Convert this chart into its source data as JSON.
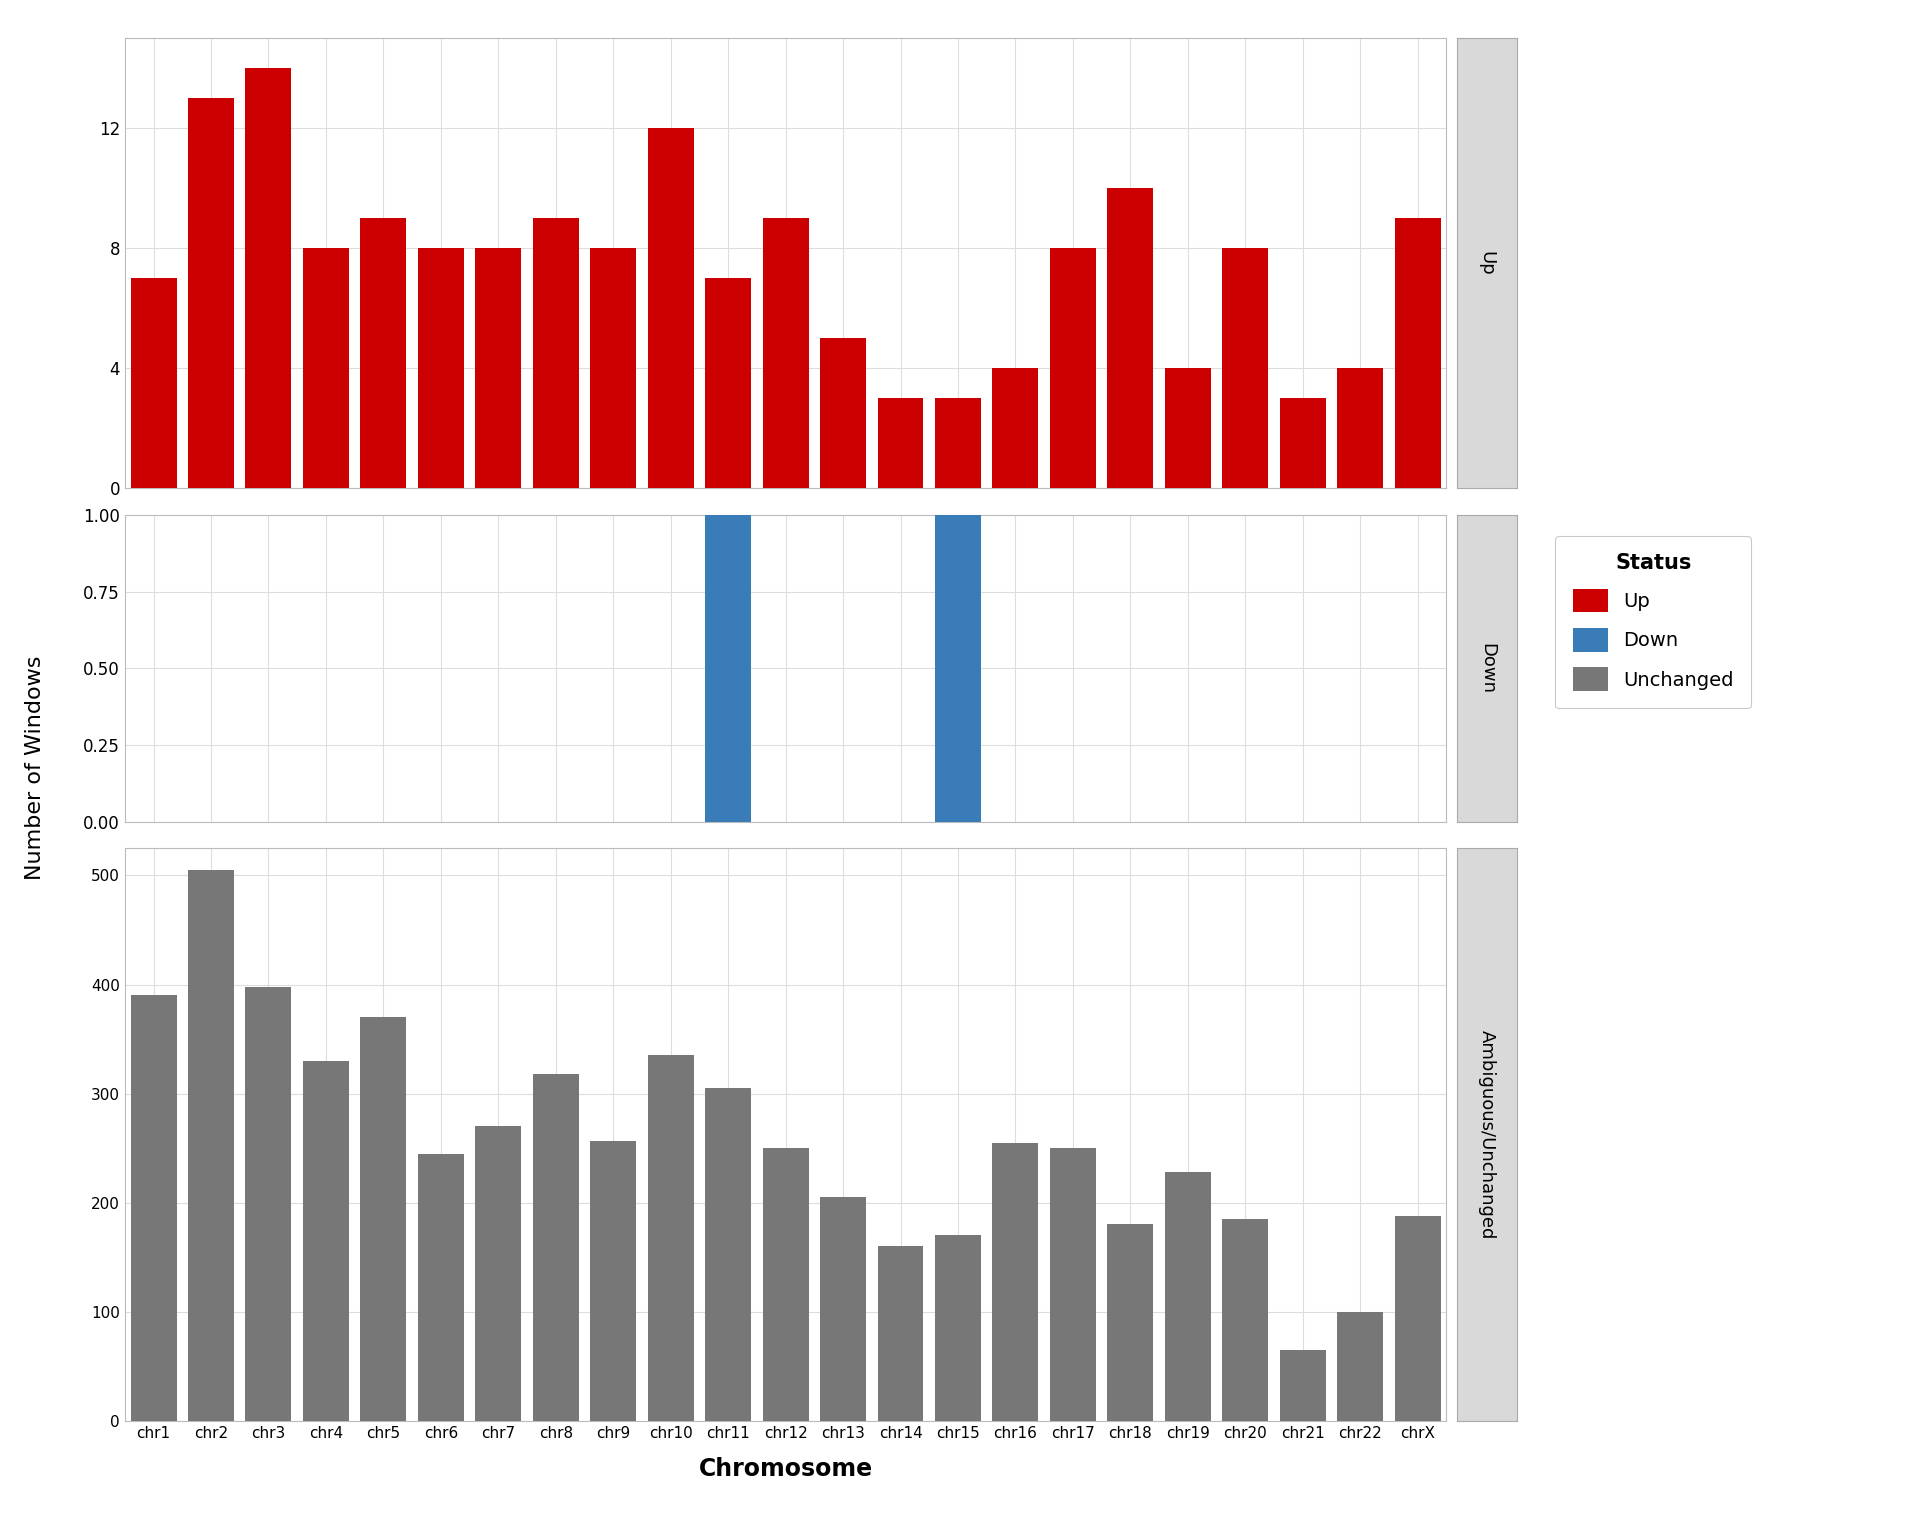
{
  "chromosomes": [
    "chr1",
    "chr2",
    "chr3",
    "chr4",
    "chr5",
    "chr6",
    "chr7",
    "chr8",
    "chr9",
    "chr10",
    "chr11",
    "chr12",
    "chr13",
    "chr14",
    "chr15",
    "chr16",
    "chr17",
    "chr18",
    "chr19",
    "chr20",
    "chr21",
    "chr22",
    "chrX"
  ],
  "up_values": [
    7,
    13,
    14,
    8,
    9,
    8,
    8,
    9,
    8,
    12,
    7,
    9,
    5,
    3,
    3,
    4,
    8,
    10,
    4,
    8,
    3,
    4,
    9
  ],
  "down_values": [
    0,
    0,
    0,
    0,
    0,
    0,
    0,
    0,
    0,
    0,
    1,
    0,
    0,
    0,
    1,
    0,
    0,
    0,
    0,
    0,
    0,
    0,
    0
  ],
  "unchanged_values": [
    390,
    505,
    398,
    330,
    370,
    245,
    270,
    318,
    257,
    335,
    305,
    250,
    205,
    160,
    170,
    255,
    250,
    180,
    228,
    185,
    65,
    100,
    188
  ],
  "up_color": "#CC0000",
  "down_color": "#3A7CB8",
  "unchanged_color": "#777777",
  "strip_bg": "#D9D9D9",
  "plot_bg": "#FFFFFF",
  "grid_color": "#DDDDDD",
  "xlabel": "Chromosome",
  "ylabel": "Number of Windows",
  "legend_title": "Status",
  "legend_labels": [
    "Up",
    "Down",
    "Unchanged"
  ],
  "panel_labels": [
    "Up",
    "Down",
    "Ambiguous/Unchanged"
  ],
  "up_ylim": [
    0,
    15
  ],
  "down_ylim": [
    0,
    1.0
  ],
  "unchanged_ylim": [
    0,
    525
  ],
  "up_yticks": [
    0,
    4,
    8,
    12
  ],
  "down_yticks": [
    0.0,
    0.25,
    0.5,
    0.75,
    1.0
  ],
  "unchanged_yticks": [
    0,
    100,
    200,
    300,
    400,
    500
  ]
}
